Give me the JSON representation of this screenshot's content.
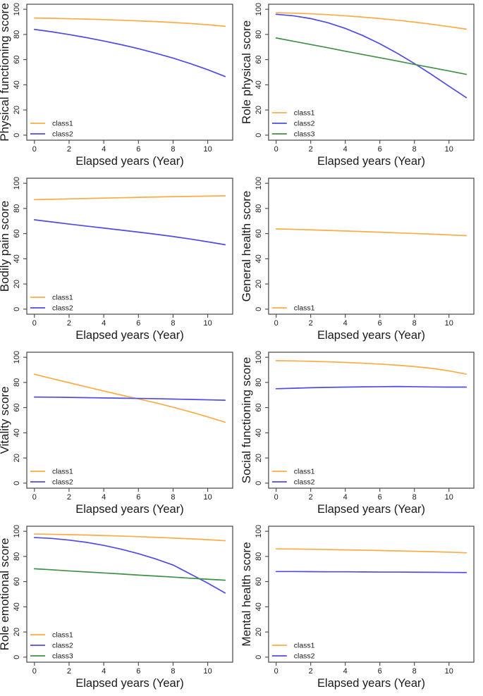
{
  "figure": {
    "description": "Eight-panel line figure of SF health domain scores over elapsed years by latent class",
    "x_axis_label": "Elapsed years (Year)",
    "colors": {
      "class1": "#FBAC45",
      "class2": "#4E4BE8",
      "class3": "#3F9146",
      "axis": "#454545",
      "text": "#1A1A1A"
    }
  },
  "chart_data": [
    {
      "type": "line",
      "ylabel": "Physical functioning score",
      "xlabel": "Elapsed years (Year)",
      "x": [
        0,
        1,
        2,
        3,
        4,
        5,
        6,
        7,
        8,
        9,
        10,
        11
      ],
      "xlim": [
        -0.44,
        11.44
      ],
      "ylim": [
        -4,
        104
      ],
      "x_ticks": [
        0,
        2,
        4,
        6,
        8,
        10
      ],
      "y_ticks": [
        0,
        20,
        40,
        60,
        80,
        100
      ],
      "grid": false,
      "legend_position": "bottom-left",
      "legend": [
        "class1",
        "class2"
      ],
      "series": [
        {
          "name": "class1",
          "values": [
            93,
            92.8,
            92.5,
            92.2,
            91.8,
            91.3,
            90.8,
            90.2,
            89.5,
            88.7,
            87.7,
            86.5
          ]
        },
        {
          "name": "class2",
          "values": [
            84,
            82.1,
            79.9,
            77.5,
            74.8,
            71.9,
            68.7,
            65.1,
            61.2,
            56.8,
            52,
            46.6
          ]
        }
      ]
    },
    {
      "type": "line",
      "ylabel": "Role physical score",
      "xlabel": "Elapsed years (Year)",
      "x": [
        0,
        1,
        2,
        3,
        4,
        5,
        6,
        7,
        8,
        9,
        10,
        11
      ],
      "xlim": [
        -0.44,
        11.44
      ],
      "ylim": [
        -4,
        104
      ],
      "x_ticks": [
        0,
        2,
        4,
        6,
        8,
        10
      ],
      "y_ticks": [
        0,
        20,
        40,
        60,
        80,
        100
      ],
      "grid": false,
      "legend_position": "bottom-left",
      "legend": [
        "class1",
        "class2",
        "class3"
      ],
      "series": [
        {
          "name": "class1",
          "values": [
            97.2,
            96.9,
            96.4,
            95.7,
            94.8,
            93.8,
            92.6,
            91.3,
            89.8,
            88.1,
            86.2,
            84.2
          ]
        },
        {
          "name": "class2",
          "values": [
            96,
            94.8,
            92.6,
            89.3,
            84.8,
            79.2,
            72.6,
            65.1,
            56.9,
            48.1,
            38.9,
            29.8
          ]
        },
        {
          "name": "class3",
          "values": [
            77.2,
            74.6,
            72.0,
            69.4,
            66.7,
            64.1,
            61.5,
            58.9,
            56.2,
            53.6,
            51.0,
            48.3
          ]
        }
      ]
    },
    {
      "type": "line",
      "ylabel": "Bodily pain score",
      "xlabel": "Elapsed years (Year)",
      "x": [
        0,
        1,
        2,
        3,
        4,
        5,
        6,
        7,
        8,
        9,
        10,
        11
      ],
      "xlim": [
        -0.44,
        11.44
      ],
      "ylim": [
        -4,
        104
      ],
      "x_ticks": [
        0,
        2,
        4,
        6,
        8,
        10
      ],
      "y_ticks": [
        0,
        20,
        40,
        60,
        80,
        100
      ],
      "grid": false,
      "legend_position": "bottom-left",
      "legend": [
        "class1",
        "class2"
      ],
      "series": [
        {
          "name": "class1",
          "values": [
            87,
            87.3,
            87.6,
            87.9,
            88.2,
            88.5,
            88.8,
            89.1,
            89.4,
            89.6,
            89.8,
            90
          ]
        },
        {
          "name": "class2",
          "values": [
            71,
            69.3,
            67.6,
            66,
            64.4,
            62.8,
            61.2,
            59.5,
            57.7,
            55.7,
            53.5,
            51.2
          ]
        }
      ]
    },
    {
      "type": "line",
      "ylabel": "General health score",
      "xlabel": "Elapsed years (Year)",
      "x": [
        0,
        1,
        2,
        3,
        4,
        5,
        6,
        7,
        8,
        9,
        10,
        11
      ],
      "xlim": [
        -0.44,
        11.44
      ],
      "ylim": [
        -4,
        104
      ],
      "x_ticks": [
        0,
        2,
        4,
        6,
        8,
        10
      ],
      "y_ticks": [
        0,
        20,
        40,
        60,
        80,
        100
      ],
      "grid": false,
      "legend_position": "bottom-left",
      "legend": [
        "class1"
      ],
      "series": [
        {
          "name": "class1",
          "values": [
            63.8,
            63.4,
            63,
            62.5,
            62.1,
            61.6,
            61.1,
            60.6,
            60.1,
            59.6,
            59,
            58.4
          ]
        }
      ]
    },
    {
      "type": "line",
      "ylabel": "Vitality score",
      "xlabel": "Elapsed years (Year)",
      "x": [
        0,
        1,
        2,
        3,
        4,
        5,
        6,
        7,
        8,
        9,
        10,
        11
      ],
      "xlim": [
        -0.44,
        11.44
      ],
      "ylim": [
        -4,
        104
      ],
      "x_ticks": [
        0,
        2,
        4,
        6,
        8,
        10
      ],
      "y_ticks": [
        0,
        20,
        40,
        60,
        80,
        100
      ],
      "grid": false,
      "legend_position": "bottom-left",
      "legend": [
        "class1",
        "class2"
      ],
      "series": [
        {
          "name": "class1",
          "values": [
            86.5,
            83.1,
            79.8,
            76.5,
            73.2,
            70,
            66.9,
            63.8,
            60.3,
            56.6,
            52.6,
            48.4
          ]
        },
        {
          "name": "class2",
          "values": [
            68.4,
            68.3,
            68.1,
            67.9,
            67.7,
            67.5,
            67.3,
            67.1,
            66.8,
            66.5,
            66.2,
            65.9
          ]
        }
      ]
    },
    {
      "type": "line",
      "ylabel": "Social functioning score",
      "xlabel": "Elapsed years (Year)",
      "x": [
        0,
        1,
        2,
        3,
        4,
        5,
        6,
        7,
        8,
        9,
        10,
        11
      ],
      "xlim": [
        -0.44,
        11.44
      ],
      "ylim": [
        -4,
        104
      ],
      "x_ticks": [
        0,
        2,
        4,
        6,
        8,
        10
      ],
      "y_ticks": [
        0,
        20,
        40,
        60,
        80,
        100
      ],
      "grid": false,
      "legend_position": "bottom-left",
      "legend": [
        "class1",
        "class2"
      ],
      "series": [
        {
          "name": "class1",
          "values": [
            97.3,
            97.1,
            96.8,
            96.4,
            95.9,
            95.3,
            94.6,
            93.7,
            92.6,
            91.2,
            89.2,
            86.6
          ]
        },
        {
          "name": "class2",
          "values": [
            75,
            75.4,
            75.8,
            76.1,
            76.3,
            76.5,
            76.6,
            76.8,
            76.6,
            76.4,
            76.3,
            76.3
          ]
        }
      ]
    },
    {
      "type": "line",
      "ylabel": "Role emotional score",
      "xlabel": "Elapsed years (Year)",
      "x": [
        0,
        1,
        2,
        3,
        4,
        5,
        6,
        7,
        8,
        9,
        10,
        11
      ],
      "xlim": [
        -0.44,
        11.44
      ],
      "ylim": [
        -4,
        104
      ],
      "x_ticks": [
        0,
        2,
        4,
        6,
        8,
        10
      ],
      "y_ticks": [
        0,
        20,
        40,
        60,
        80,
        100
      ],
      "grid": false,
      "legend_position": "bottom-left",
      "legend": [
        "class1",
        "class2",
        "class3"
      ],
      "series": [
        {
          "name": "class1",
          "values": [
            97.8,
            97.6,
            97.3,
            97,
            96.6,
            96.2,
            95.7,
            95.2,
            94.6,
            94,
            93.3,
            92.5
          ]
        },
        {
          "name": "class2",
          "values": [
            95,
            94.3,
            93,
            91.2,
            88.8,
            85.8,
            82.2,
            78,
            73.2,
            66,
            58.8,
            51
          ]
        },
        {
          "name": "class3",
          "values": [
            70.2,
            69.4,
            68.5,
            67.7,
            66.9,
            66.1,
            65.2,
            64.4,
            63.6,
            62.7,
            61.9,
            61.1
          ]
        }
      ]
    },
    {
      "type": "line",
      "ylabel": "Mental health score",
      "xlabel": "Elapsed years (Year)",
      "x": [
        0,
        1,
        2,
        3,
        4,
        5,
        6,
        7,
        8,
        9,
        10,
        11
      ],
      "xlim": [
        -0.44,
        11.44
      ],
      "ylim": [
        -4,
        104
      ],
      "x_ticks": [
        0,
        2,
        4,
        6,
        8,
        10
      ],
      "y_ticks": [
        0,
        20,
        40,
        60,
        80,
        100
      ],
      "grid": false,
      "legend_position": "bottom-left",
      "legend": [
        "class1",
        "class2"
      ],
      "series": [
        {
          "name": "class1",
          "values": [
            86,
            85.9,
            85.7,
            85.5,
            85.2,
            85,
            84.7,
            84.4,
            84.1,
            83.8,
            83.4,
            82.9
          ]
        },
        {
          "name": "class2",
          "values": [
            68,
            68,
            67.9,
            67.8,
            67.8,
            67.7,
            67.6,
            67.6,
            67.5,
            67.4,
            67.3,
            67.2
          ]
        }
      ]
    }
  ]
}
